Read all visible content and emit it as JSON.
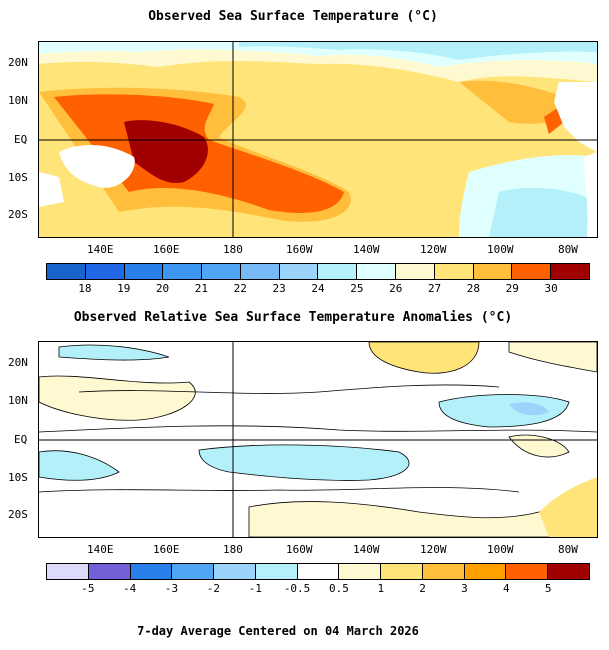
{
  "title1": "Observed Sea Surface Temperature (°C)",
  "title2": "Observed Relative Sea Surface Temperature Anomalies (°C)",
  "footer": "7-day Average Centered on 04 March 2026",
  "lat_labels": [
    "20N",
    "10N",
    "EQ",
    "10S",
    "20S"
  ],
  "lon_labels": [
    "140E",
    "160E",
    "180",
    "160W",
    "140W",
    "120W",
    "100W",
    "80W"
  ],
  "sst_colorbar": {
    "labels": [
      "18",
      "19",
      "20",
      "21",
      "22",
      "23",
      "24",
      "25",
      "26",
      "27",
      "28",
      "29",
      "30"
    ],
    "colors": [
      "#1764cc",
      "#2068e6",
      "#2a80eb",
      "#3c96f2",
      "#50a6f3",
      "#78baf8",
      "#9ad4fa",
      "#b4f0fa",
      "#e0ffff",
      "#fff9d2",
      "#ffe47a",
      "#ffbe3c",
      "#ff6000",
      "#a00000"
    ]
  },
  "anom_colorbar": {
    "labels": [
      "-5",
      "-4",
      "-3",
      "-2",
      "-1",
      "-0.5",
      "0.5",
      "1",
      "2",
      "3",
      "4",
      "5"
    ],
    "colors": [
      "#dcdcfa",
      "#7260d8",
      "#2a80eb",
      "#50a6f3",
      "#9ad4fa",
      "#b4f0fa",
      "#ffffff",
      "#fff9d2",
      "#ffe47a",
      "#ffbe3c",
      "#ffa000",
      "#ff6000",
      "#a00000"
    ]
  }
}
